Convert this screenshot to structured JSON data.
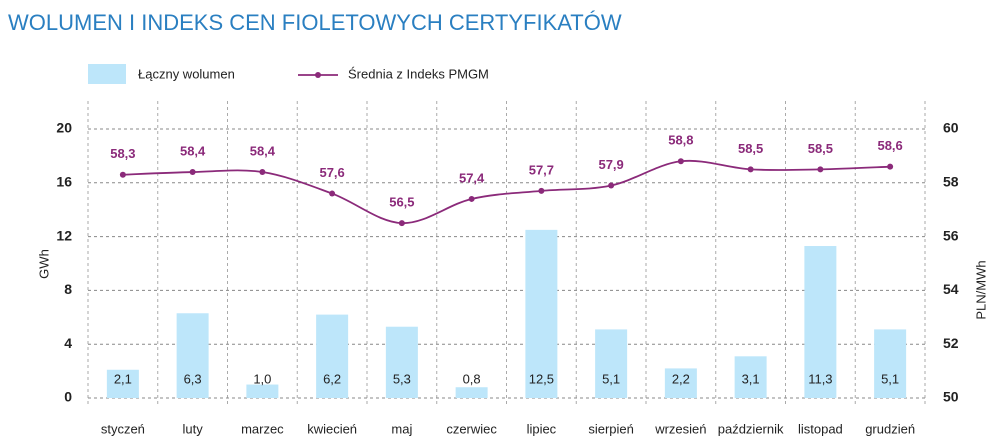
{
  "chart_data": {
    "type": "bar_line",
    "title": "WOLUMEN I INDEKS CEN FIOLETOWYCH CERTYFIKATÓW",
    "y_label": "GWh",
    "y2_label": "PLN/MWh",
    "categories": [
      "styczeń",
      "luty",
      "marzec",
      "kwiecień",
      "maj",
      "czerwiec",
      "lipiec",
      "sierpień",
      "wrzesień",
      "październik",
      "listopad",
      "grudzień"
    ],
    "series": [
      {
        "name": "Łączny wolumen",
        "type": "bar",
        "color": "#bde6fa",
        "axis": "y",
        "values": [
          2.1,
          6.3,
          1.0,
          6.2,
          5.3,
          0.8,
          12.5,
          5.1,
          2.2,
          3.1,
          11.3,
          5.1
        ],
        "value_labels": [
          "2,1",
          "6,3",
          "1,0",
          "6,2",
          "5,3",
          "0,8",
          "12,5",
          "5,1",
          "2,2",
          "3,1",
          "11,3",
          "5,1"
        ]
      },
      {
        "name": "Średnia z Indeks PMGM",
        "type": "line",
        "color": "#8b2a7a",
        "axis": "y2",
        "values": [
          58.3,
          58.4,
          58.4,
          57.6,
          56.5,
          57.4,
          57.7,
          57.9,
          58.8,
          58.5,
          58.5,
          58.6
        ],
        "value_labels": [
          "58,3",
          "58,4",
          "58,4",
          "57,6",
          "56,5",
          "57,4",
          "57,7",
          "57,9",
          "58,8",
          "58,5",
          "58,5",
          "58,6"
        ]
      }
    ],
    "ylim": [
      0,
      20
    ],
    "yticks": [
      0,
      4,
      8,
      12,
      16,
      20
    ],
    "y2lim": [
      50,
      60
    ],
    "y2ticks": [
      50,
      52,
      54,
      56,
      58,
      60
    ],
    "grid": true
  }
}
